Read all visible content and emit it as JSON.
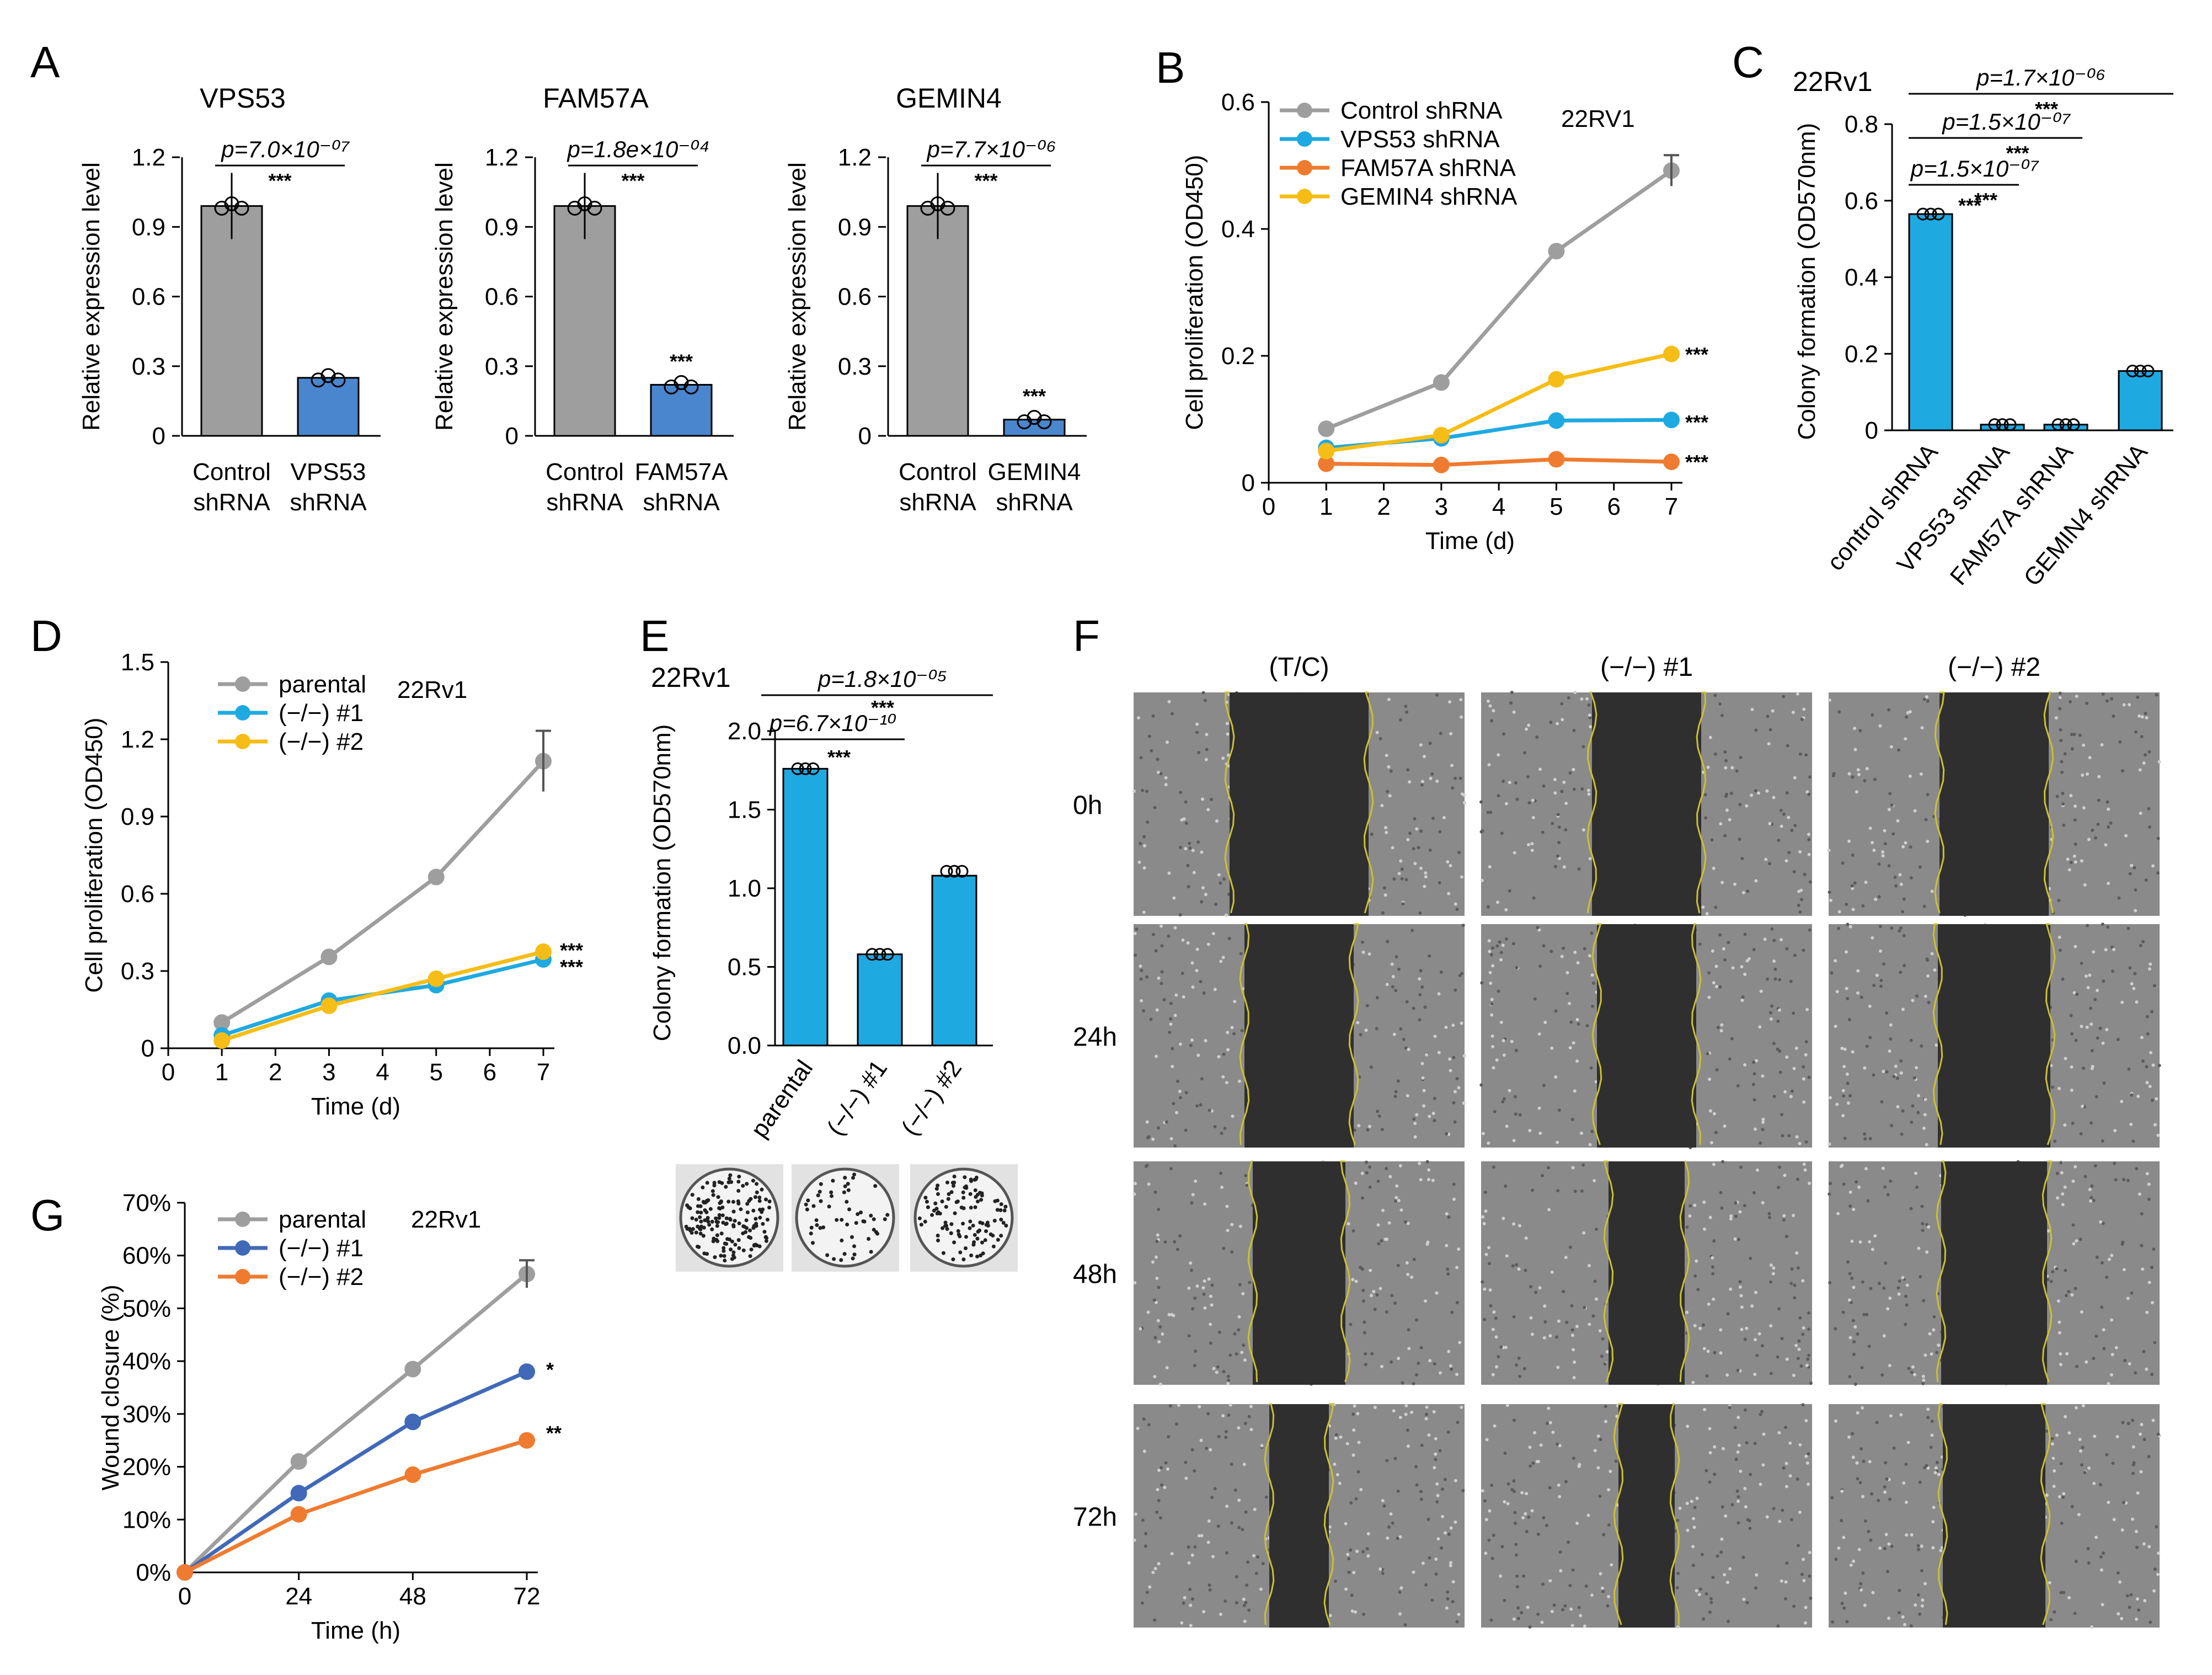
{
  "panels": {
    "A": "A",
    "B": "B",
    "C": "C",
    "D": "D",
    "E": "E",
    "F": "F",
    "G": "G"
  },
  "colors": {
    "gray": "#9e9e9e",
    "blue": "#4a86cd",
    "cyan": "#1fa9e1",
    "orange": "#ef7b30",
    "yellow": "#f6bd16",
    "darkblue": "#4169b8"
  },
  "chart_data": [
    {
      "id": "A1",
      "type": "bar",
      "title": "VPS53",
      "categories": [
        "Control shRNA",
        "VPS53 shRNA"
      ],
      "cat_lines": [
        [
          "Control",
          "shRNA"
        ],
        [
          "VPS53",
          "shRNA"
        ]
      ],
      "values": [
        0.99,
        0.25
      ],
      "ylabel": "Relative expression level",
      "yticks": [
        "0",
        "0.3",
        "0.6",
        "0.9",
        "1.2"
      ],
      "ylim": [
        0,
        1.2
      ],
      "pvalue": "p=7.0×10⁻⁰⁷",
      "stars": "***"
    },
    {
      "id": "A2",
      "type": "bar",
      "title": "FAM57A",
      "categories": [
        "Control shRNA",
        "FAM57A shRNA"
      ],
      "cat_lines": [
        [
          "Control",
          "shRNA"
        ],
        [
          "FAM57A",
          "shRNA"
        ]
      ],
      "values": [
        0.99,
        0.22
      ],
      "ylabel": "Relative expression level",
      "yticks": [
        "0",
        "0.3",
        "0.6",
        "0.9",
        "1.2"
      ],
      "ylim": [
        0,
        1.2
      ],
      "pvalue": "p=1.8e×10⁻⁰⁴",
      "stars": "***",
      "bar_stars": "***"
    },
    {
      "id": "A3",
      "type": "bar",
      "title": "GEMIN4",
      "categories": [
        "Control shRNA",
        "GEMIN4 shRNA"
      ],
      "cat_lines": [
        [
          "Control",
          "shRNA"
        ],
        [
          "GEMIN4",
          "shRNA"
        ]
      ],
      "values": [
        0.99,
        0.07
      ],
      "ylabel": "Relative expression level",
      "yticks": [
        "0",
        "0.3",
        "0.6",
        "0.9",
        "1.2"
      ],
      "ylim": [
        0,
        1.2
      ],
      "pvalue": "p=7.7×10⁻⁰⁶",
      "stars": "***",
      "bar_stars": "***"
    },
    {
      "id": "B",
      "type": "line",
      "cell_line": "22RV1",
      "x": [
        1,
        3,
        5,
        7
      ],
      "series": [
        {
          "name": "Control shRNA",
          "values": [
            0.085,
            0.158,
            0.365,
            0.492
          ],
          "color": "#9e9e9e"
        },
        {
          "name": "VPS53 shRNA",
          "values": [
            0.055,
            0.07,
            0.098,
            0.099
          ],
          "color": "#1fa9e1"
        },
        {
          "name": "FAM57A shRNA",
          "values": [
            0.03,
            0.028,
            0.037,
            0.033
          ],
          "color": "#ef7b30"
        },
        {
          "name": "GEMIN4 shRNA",
          "values": [
            0.05,
            0.075,
            0.163,
            0.203
          ],
          "color": "#f6bd16"
        }
      ],
      "stars": [
        "***",
        "***",
        "***"
      ],
      "xlabel": "Time (d)",
      "ylabel": "Cell proliferation (OD450)",
      "xticks": [
        "0",
        "1",
        "2",
        "3",
        "4",
        "5",
        "6",
        "7"
      ],
      "yticks": [
        "0",
        "0.2",
        "0.4",
        "0.6"
      ],
      "xlim": [
        0,
        7
      ],
      "ylim": [
        0,
        0.6
      ]
    },
    {
      "id": "C",
      "type": "bar",
      "cell_line": "22Rv1",
      "categories": [
        "control shRNA",
        "VPS53 shRNA",
        "FAM57A shRNA",
        "GEMIN4 shRNA"
      ],
      "values": [
        0.565,
        0.015,
        0.015,
        0.155
      ],
      "ylabel": "Colony formation (OD570nm)",
      "yticks": [
        "0",
        "0.2",
        "0.4",
        "0.6",
        "0.8"
      ],
      "ylim": [
        0,
        0.8
      ],
      "pvalues": [
        "p=1.7×10⁻⁰⁶",
        "p=1.5×10⁻⁰⁷",
        "p=1.5×10⁻⁰⁷"
      ],
      "stars": [
        "***",
        "***",
        "***",
        "***"
      ]
    },
    {
      "id": "D",
      "type": "line",
      "cell_line": "22Rv1",
      "x": [
        1,
        3,
        5,
        7
      ],
      "series": [
        {
          "name": "parental",
          "values": [
            0.1,
            0.355,
            0.665,
            1.115
          ],
          "color": "#9e9e9e"
        },
        {
          "name": "(−/−) #1",
          "values": [
            0.05,
            0.185,
            0.245,
            0.345
          ],
          "color": "#1fa9e1"
        },
        {
          "name": "(−/−) #2",
          "values": [
            0.03,
            0.165,
            0.27,
            0.375
          ],
          "color": "#f6bd16"
        }
      ],
      "stars": [
        "***",
        "***"
      ],
      "xlabel": "Time (d)",
      "ylabel": "Cell proliferation (OD450)",
      "xticks": [
        "0",
        "1",
        "2",
        "3",
        "4",
        "5",
        "6",
        "7"
      ],
      "yticks": [
        "0",
        "0.3",
        "0.6",
        "0.9",
        "1.2",
        "1.5"
      ],
      "xlim": [
        0,
        7
      ],
      "ylim": [
        0,
        1.5
      ]
    },
    {
      "id": "E",
      "type": "bar",
      "cell_line": "22Rv1",
      "categories": [
        "parental",
        "(−/−) #1",
        "(−/−) #2"
      ],
      "values": [
        1.76,
        0.58,
        1.08
      ],
      "ylabel": "Colony formation (OD570nm)",
      "yticks": [
        "0.0",
        "0.5",
        "1.0",
        "1.5",
        "2.0"
      ],
      "ylim": [
        0,
        2.0
      ],
      "pvalues": [
        "p=1.8×10⁻⁰⁵",
        "p=6.7×10⁻¹⁰"
      ],
      "stars": [
        "***",
        "***"
      ]
    },
    {
      "id": "G",
      "type": "line",
      "cell_line": "22Rv1",
      "x": [
        0,
        24,
        48,
        72
      ],
      "series": [
        {
          "name": "parental",
          "values": [
            0,
            21,
            38.5,
            56.5
          ],
          "color": "#9e9e9e"
        },
        {
          "name": "(−/−) #1",
          "values": [
            0,
            15,
            28.5,
            38
          ],
          "color": "#4169b8"
        },
        {
          "name": "(−/−) #2",
          "values": [
            0,
            11,
            18.5,
            25
          ],
          "color": "#ef7b30"
        }
      ],
      "stars": [
        "*",
        "**"
      ],
      "xlabel": "Time (h)",
      "ylabel": "Wound closure (%)",
      "xticks": [
        "0",
        "24",
        "48",
        "72"
      ],
      "yticks": [
        "0%",
        "10%",
        "20%",
        "30%",
        "40%",
        "50%",
        "60%",
        "70%"
      ],
      "xlim": [
        0,
        72
      ],
      "ylim": [
        0,
        70
      ]
    }
  ],
  "panel_F": {
    "columns": [
      "(T/C)",
      "(−/−) #1",
      "(−/−) #2"
    ],
    "rows": [
      "0h",
      "24h",
      "48h",
      "72h"
    ],
    "gap_width_fraction": [
      [
        0.42,
        0.33,
        0.33
      ],
      [
        0.33,
        0.3,
        0.34
      ],
      [
        0.28,
        0.23,
        0.32
      ],
      [
        0.18,
        0.17,
        0.31
      ]
    ]
  }
}
